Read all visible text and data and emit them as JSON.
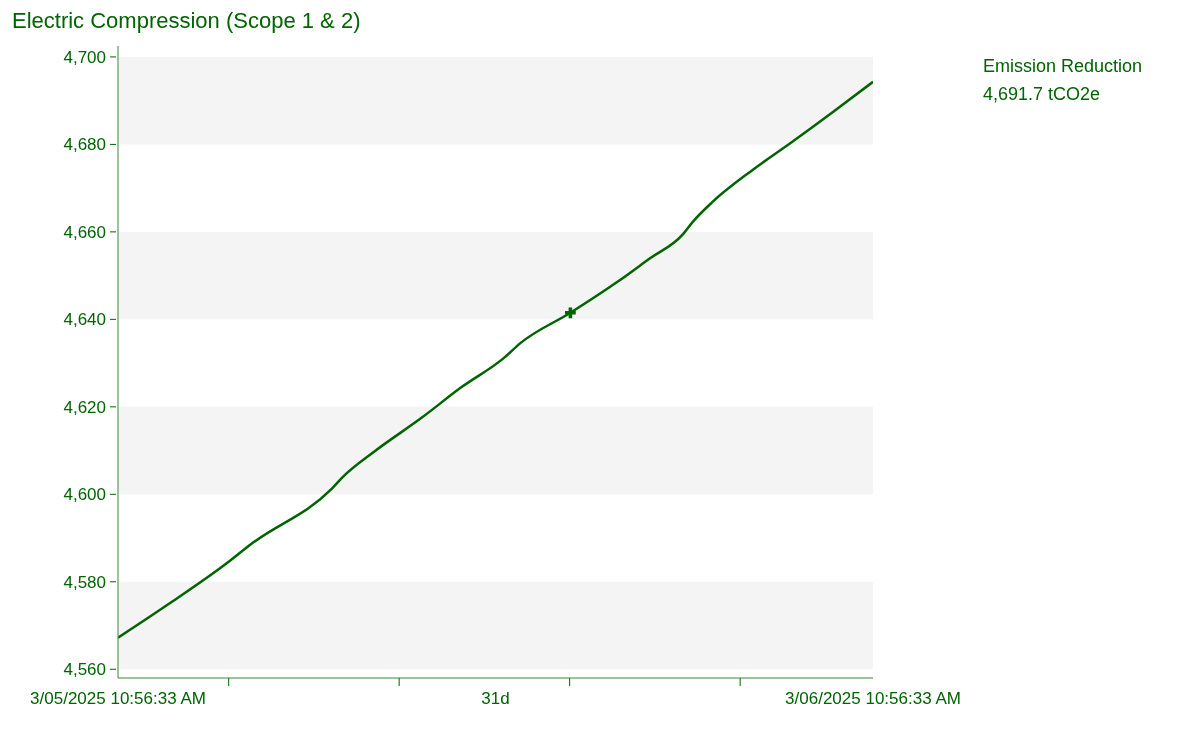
{
  "chart_data": {
    "type": "line",
    "title": "Electric Compression (Scope 1 & 2)",
    "annotations": [
      "Emission Reduction",
      "4,691.7 tCO2e"
    ],
    "xlim": [
      "2025-05-03T10:56",
      "2025-06-03T10:56"
    ],
    "xticks": [
      {
        "value": "2025-05-03T10:56",
        "label": "3/05/2025 10:56:33 AM"
      },
      {
        "value": "2025-05-08T00:00",
        "label": null
      },
      {
        "value": "2025-05-15T00:00",
        "label": null
      },
      {
        "value": "2025-05-18T22:56",
        "label": "31d"
      },
      {
        "value": "2025-05-22T00:00",
        "label": null
      },
      {
        "value": "2025-05-29T00:00",
        "label": null
      },
      {
        "value": "2025-06-03T10:56",
        "label": "3/06/2025 10:56:33 AM"
      }
    ],
    "ylim": [
      4558,
      4702.5
    ],
    "yticks": [
      {
        "value": 4560,
        "label": "4,560"
      },
      {
        "value": 4580,
        "label": "4,580"
      },
      {
        "value": 4600,
        "label": "4,600"
      },
      {
        "value": 4620,
        "label": "4,620"
      },
      {
        "value": 4640,
        "label": "4,640"
      },
      {
        "value": 4660,
        "label": "4,660"
      },
      {
        "value": 4680,
        "label": "4,680"
      },
      {
        "value": 4700,
        "label": "4,700"
      }
    ],
    "bands": [
      {
        "axis": "y",
        "from": 4560,
        "to": 4580,
        "color": "#f4f4f4"
      },
      {
        "axis": "y",
        "from": 4600,
        "to": 4620,
        "color": "#f4f4f4"
      },
      {
        "axis": "y",
        "from": 4640,
        "to": 4660,
        "color": "#f4f4f4"
      },
      {
        "axis": "y",
        "from": 4680,
        "to": 4700,
        "color": "#f4f4f4"
      }
    ],
    "series": [
      {
        "color": "#006400",
        "x": [
          "2025-05-03T10:56",
          "2025-05-05T15:20",
          "2025-05-08T01:18",
          "2025-05-08T20:50",
          "2025-05-12T05:44",
          "2025-05-12T17:32",
          "2025-05-14T00:14",
          "2025-05-15T22:44",
          "2025-05-17T12:50",
          "2025-05-19T07:56",
          "2025-05-19T23:08",
          "2025-05-22T00:44",
          "2025-05-23T23:50",
          "2025-05-25T06:50",
          "2025-05-26T15:05",
          "2025-05-27T01:20",
          "2025-05-27T20:32",
          "2025-05-29T11:20",
          "2025-05-31T01:44",
          "2025-06-01T20:08",
          "2025-06-03T10:56"
        ],
        "values": [
          4567.2,
          4575.3,
          4584.8,
          4588.4,
          4601.3,
          4604.2,
          4609.9,
          4617.6,
          4624.4,
          4631.3,
          4634.5,
          4641.5,
          4648.7,
          4653.9,
          4659.3,
          4662.3,
          4666.8,
          4674.0,
          4680.3,
          4687.5,
          4694.3
        ]
      },
      {
        "type": "scatter",
        "marker": "cross",
        "color": "#006400",
        "x": [
          "2025-05-22T00:44"
        ],
        "values": [
          4641.5
        ]
      }
    ]
  }
}
